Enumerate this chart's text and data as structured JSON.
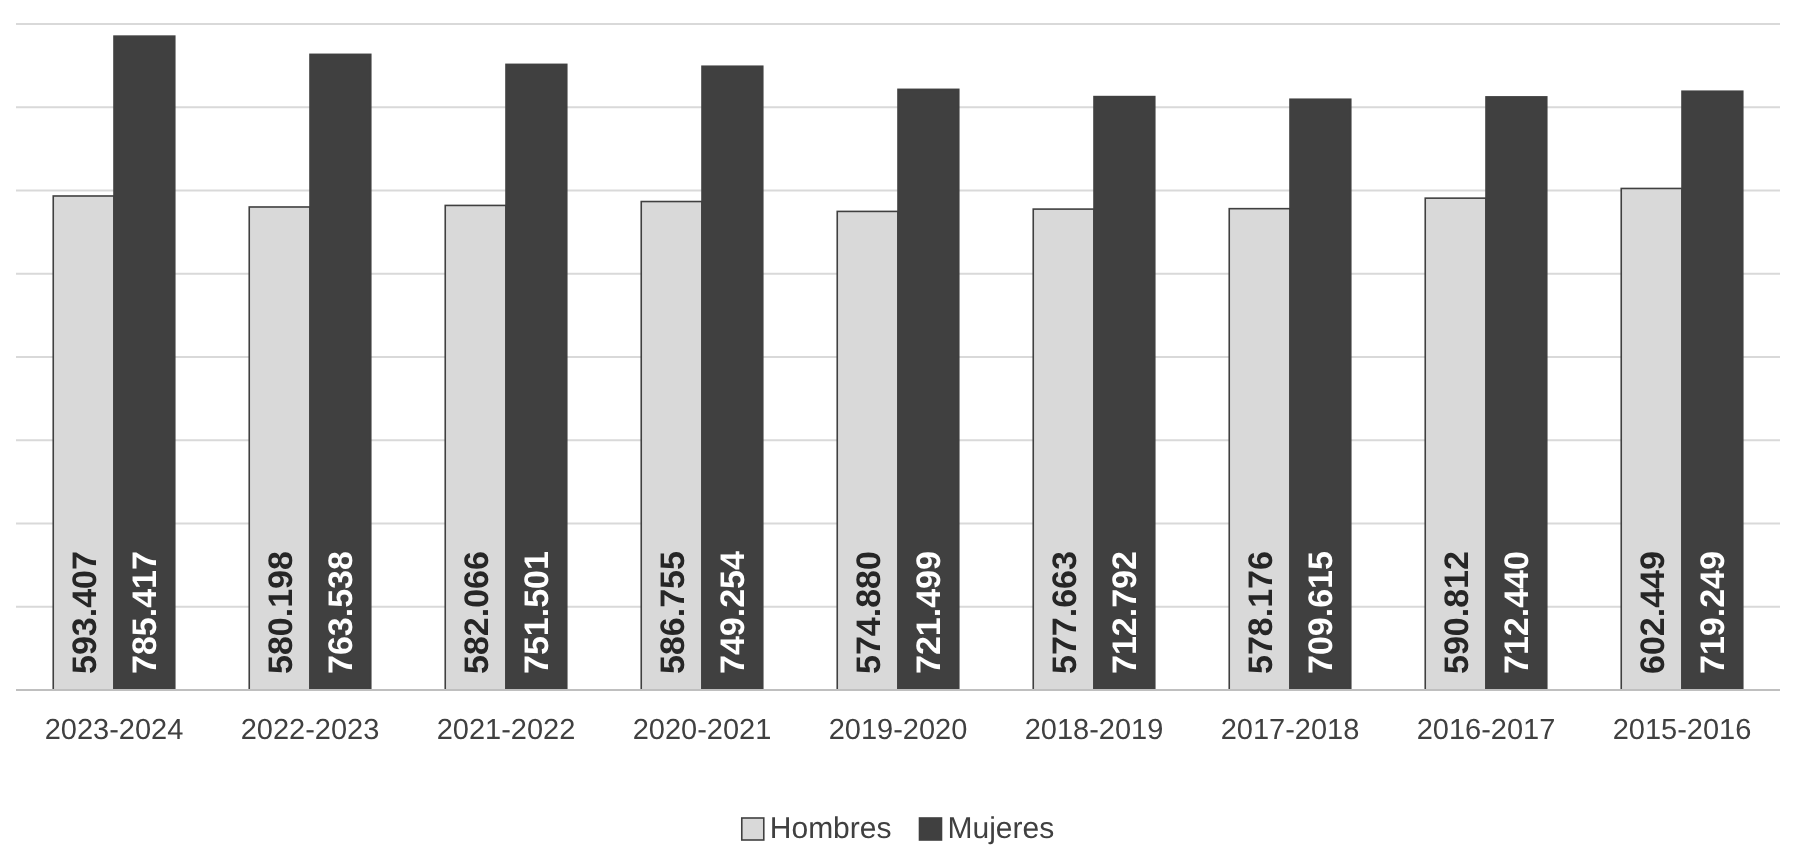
{
  "chart_data": {
    "type": "bar",
    "categories": [
      "2023-2024",
      "2022-2023",
      "2021-2022",
      "2020-2021",
      "2019-2020",
      "2018-2019",
      "2017-2018",
      "2016-2017",
      "2015-2016"
    ],
    "series": [
      {
        "name": "Hombres",
        "color": "#d9d9d9",
        "values": [
          593407,
          580198,
          582066,
          586755,
          574880,
          577663,
          578176,
          590812,
          602449
        ],
        "value_labels": [
          "593.407",
          "580.198",
          "582.066",
          "586.755",
          "574.880",
          "577.663",
          "578.176",
          "590.812",
          "602.449"
        ]
      },
      {
        "name": "Mujeres",
        "color": "#404040",
        "values": [
          785417,
          763538,
          751501,
          749254,
          721499,
          712792,
          709615,
          712440,
          719249
        ],
        "value_labels": [
          "785.417",
          "763.538",
          "751.501",
          "749.254",
          "721.499",
          "712.792",
          "709.615",
          "712.440",
          "719.249"
        ]
      }
    ],
    "ylim": [
      0,
      800000
    ],
    "yticks": [
      {
        "value": 0,
        "label": null
      },
      {
        "value": 100000,
        "label": null
      },
      {
        "value": 200000,
        "label": null
      },
      {
        "value": 300000,
        "label": null
      },
      {
        "value": 400000,
        "label": null
      },
      {
        "value": 500000,
        "label": null
      },
      {
        "value": 600000,
        "label": null
      },
      {
        "value": 700000,
        "label": null
      },
      {
        "value": 800000,
        "label": null
      }
    ],
    "grid": "y",
    "tick_labels": "x",
    "legend": "bottom"
  }
}
